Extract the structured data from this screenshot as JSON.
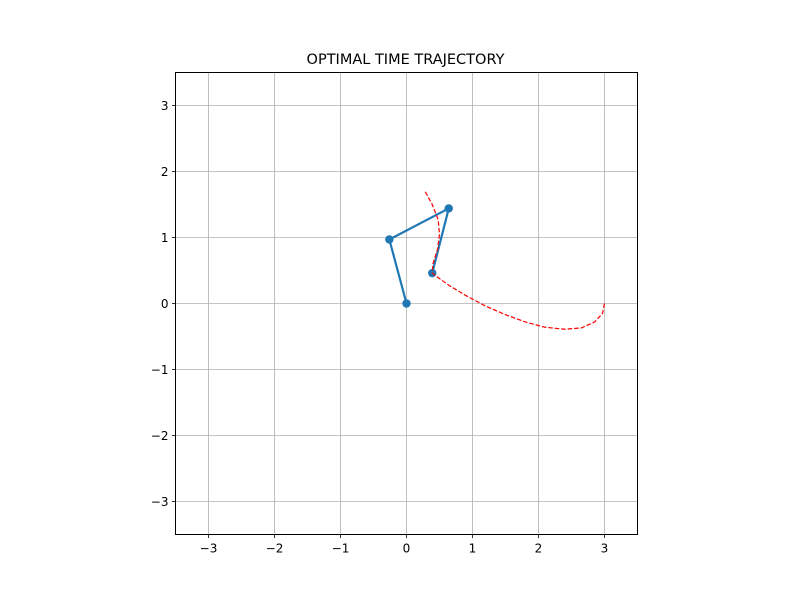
{
  "chart_data": {
    "type": "line",
    "title": "OPTIMAL TIME TRAJECTORY",
    "xlabel": "",
    "ylabel": "",
    "xlim": [
      -3.5,
      3.5
    ],
    "ylim": [
      -3.5,
      3.5
    ],
    "xticks": [
      -3,
      -2,
      -1,
      0,
      1,
      2,
      3
    ],
    "yticks": [
      -3,
      -2,
      -1,
      0,
      1,
      2,
      3
    ],
    "xtick_labels": [
      "−3",
      "−2",
      "−1",
      "0",
      "1",
      "2",
      "3"
    ],
    "ytick_labels": [
      "−3",
      "−2",
      "−1",
      "0",
      "1",
      "2",
      "3"
    ],
    "grid": true,
    "aspect": "equal",
    "series": [
      {
        "style": "solid-with-markers",
        "color": "#1f77b4",
        "x": [
          0.0,
          -0.26,
          0.64,
          0.39
        ],
        "y": [
          0.0,
          0.97,
          1.44,
          0.46
        ]
      },
      {
        "style": "dashed",
        "color": "#ff0000",
        "x": [
          3.0,
          2.97,
          2.85,
          2.65,
          2.4,
          2.1,
          1.8,
          1.5,
          1.2,
          0.9,
          0.65,
          0.47,
          0.39,
          0.4,
          0.47,
          0.5,
          0.48,
          0.39,
          0.27
        ],
        "y": [
          0.0,
          -0.15,
          -0.28,
          -0.37,
          -0.39,
          -0.36,
          -0.28,
          -0.17,
          -0.04,
          0.12,
          0.27,
          0.4,
          0.46,
          0.6,
          0.82,
          1.05,
          1.27,
          1.5,
          1.72
        ]
      }
    ]
  }
}
